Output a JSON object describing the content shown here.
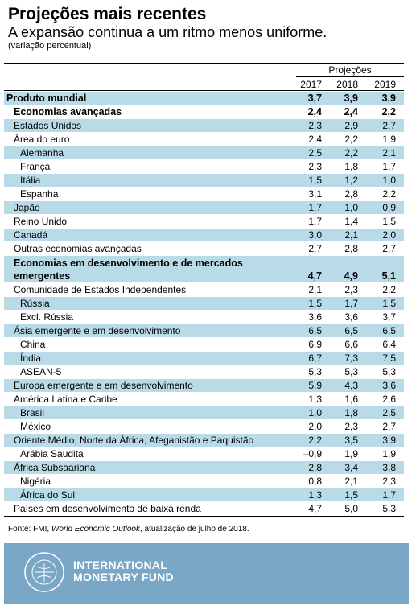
{
  "header": {
    "title": "Projeções mais recentes",
    "subtitle": "A expansão continua a um ritmo menos uniforme.",
    "note": "(variação percentual)"
  },
  "table": {
    "projections_label": "Projeções",
    "years": [
      "2017",
      "2018",
      "2019"
    ],
    "rows": [
      {
        "label": "Produto mundial",
        "values": [
          "3,7",
          "3,9",
          "3,9"
        ]
      },
      {
        "label": "Economias avançadas",
        "values": [
          "2,4",
          "2,4",
          "2,2"
        ]
      },
      {
        "label": "Estados Unidos",
        "values": [
          "2,3",
          "2,9",
          "2,7"
        ]
      },
      {
        "label": "Área do euro",
        "values": [
          "2,4",
          "2,2",
          "1,9"
        ]
      },
      {
        "label": "Alemanha",
        "values": [
          "2,5",
          "2,2",
          "2,1"
        ]
      },
      {
        "label": "França",
        "values": [
          "2,3",
          "1,8",
          "1,7"
        ]
      },
      {
        "label": "Itália",
        "values": [
          "1,5",
          "1,2",
          "1,0"
        ]
      },
      {
        "label": "Espanha",
        "values": [
          "3,1",
          "2,8",
          "2,2"
        ]
      },
      {
        "label": "Japão",
        "values": [
          "1,7",
          "1,0",
          "0,9"
        ]
      },
      {
        "label": "Reino Unido",
        "values": [
          "1,7",
          "1,4",
          "1,5"
        ]
      },
      {
        "label": "Canadá",
        "values": [
          "3,0",
          "2,1",
          "2,0"
        ]
      },
      {
        "label": "Outras economias avançadas",
        "values": [
          "2,7",
          "2,8",
          "2,7"
        ]
      },
      {
        "label": "Economias em desenvolvimento e de mercados emergentes",
        "values": [
          "4,7",
          "4,9",
          "5,1"
        ]
      },
      {
        "label": "Comunidade de Estados Independentes",
        "values": [
          "2,1",
          "2,3",
          "2,2"
        ]
      },
      {
        "label": "Rússia",
        "values": [
          "1,5",
          "1,7",
          "1,5"
        ]
      },
      {
        "label": "Excl. Rússia",
        "values": [
          "3,6",
          "3,6",
          "3,7"
        ]
      },
      {
        "label": "Ásia emergente e em desenvolvimento",
        "values": [
          "6,5",
          "6,5",
          "6,5"
        ]
      },
      {
        "label": "China",
        "values": [
          "6,9",
          "6,6",
          "6,4"
        ]
      },
      {
        "label": "Índia",
        "values": [
          "6,7",
          "7,3",
          "7,5"
        ]
      },
      {
        "label": "ASEAN-5",
        "values": [
          "5,3",
          "5,3",
          "5,3"
        ]
      },
      {
        "label": "Europa emergente e em desenvolvimento",
        "values": [
          "5,9",
          "4,3",
          "3,6"
        ]
      },
      {
        "label": "América Latina e Caribe",
        "values": [
          "1,3",
          "1,6",
          "2,6"
        ]
      },
      {
        "label": "Brasil",
        "values": [
          "1,0",
          "1,8",
          "2,5"
        ]
      },
      {
        "label": "México",
        "values": [
          "2,0",
          "2,3",
          "2,7"
        ]
      },
      {
        "label": "Oriente Médio, Norte da África, Afeganistão e Paquistão",
        "values": [
          "2,2",
          "3,5",
          "3,9"
        ]
      },
      {
        "label": "Arábia Saudita",
        "values": [
          "–0,9",
          "1,9",
          "1,9"
        ]
      },
      {
        "label": "África Subsaariana",
        "values": [
          "2,8",
          "3,4",
          "3,8"
        ]
      },
      {
        "label": "Nigéria",
        "values": [
          "0,8",
          "2,1",
          "2,3"
        ]
      },
      {
        "label": "África do Sul",
        "values": [
          "1,3",
          "1,5",
          "1,7"
        ]
      },
      {
        "label": "Países em desenvolvimento de baixa renda",
        "values": [
          "4,7",
          "5,0",
          "5,3"
        ]
      }
    ]
  },
  "source": {
    "prefix": "Fonte: FMI, ",
    "publication": "World Economic Outlook",
    "suffix": ", atualização de julho de 2018."
  },
  "footer": {
    "org_line1": "INTERNATIONAL",
    "org_line2": "MONETARY FUND",
    "seal_text": "INTERNATIONAL MONETARY FUND",
    "background_color": "#7ba7c7",
    "row_highlight_color": "#b9dbe8"
  }
}
